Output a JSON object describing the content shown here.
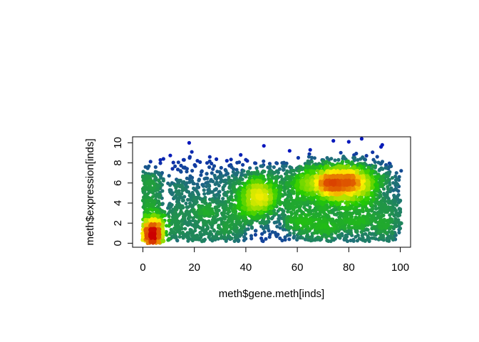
{
  "chart_data": {
    "type": "scatter",
    "title": "",
    "xlabel": "meth$gene.meth[inds]",
    "ylabel": "meth$expression[inds]",
    "xlim": [
      -4,
      104
    ],
    "ylim": [
      -0.4,
      10.6
    ],
    "x_ticks": [
      0,
      20,
      40,
      60,
      80,
      100
    ],
    "y_ticks": [
      0,
      2,
      4,
      6,
      8,
      10
    ],
    "grid": false,
    "legend": "none",
    "color_scale": [
      "#0000cc",
      "#1f6f7a",
      "#22cc00",
      "#ffee00",
      "#cc0000"
    ],
    "density_clusters": [
      {
        "x": 4,
        "y": 1.0,
        "x_spread": 2.5,
        "y_spread": 0.9
      },
      {
        "x": 76,
        "y": 6.0,
        "x_spread": 10,
        "y_spread": 1.1
      },
      {
        "x": 45,
        "y": 4.6,
        "x_spread": 5,
        "y_spread": 1.2
      }
    ],
    "outlier_points": [
      {
        "x": 18,
        "y": 10.0
      },
      {
        "x": 74,
        "y": 10.2
      },
      {
        "x": 80,
        "y": 10.1
      },
      {
        "x": 85,
        "y": 10.4
      },
      {
        "x": 47,
        "y": 9.7
      },
      {
        "x": 93,
        "y": 9.8
      },
      {
        "x": 1,
        "y": 7.6
      },
      {
        "x": 8,
        "y": 8.4
      },
      {
        "x": 26,
        "y": 8.6
      },
      {
        "x": 38,
        "y": 8.8
      },
      {
        "x": 57,
        "y": 9.2
      },
      {
        "x": 65,
        "y": 9.3
      },
      {
        "x": 99,
        "y": 4.4
      },
      {
        "x": 100,
        "y": 3.1
      },
      {
        "x": 98,
        "y": 0.4
      },
      {
        "x": 96,
        "y": 7.9
      }
    ]
  }
}
